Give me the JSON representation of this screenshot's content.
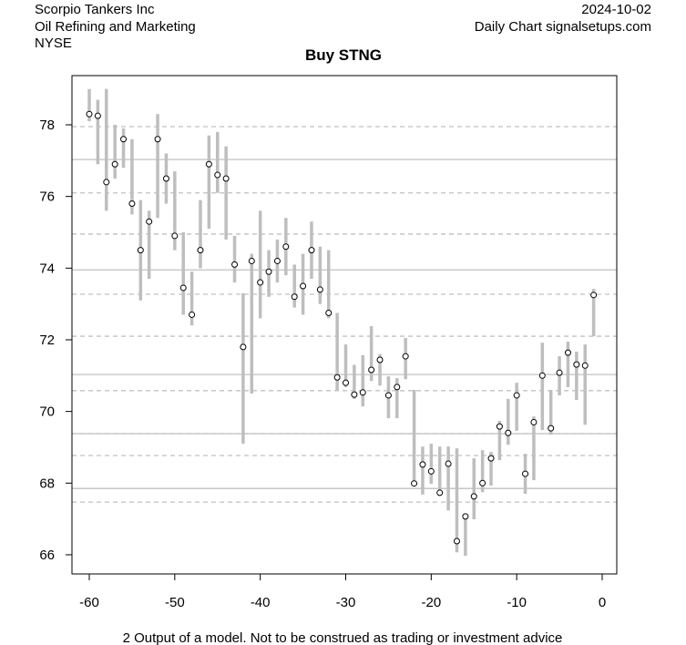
{
  "header": {
    "company": "Scorpio Tankers Inc",
    "sector": "Oil Refining and Marketing",
    "exchange": "NYSE",
    "date": "2024-10-02",
    "source": "Daily Chart signalsetups.com"
  },
  "footer": {
    "disclaimer": "2 Output of a model. Not to be construed as trading or investment advice"
  },
  "chart_data": {
    "type": "range-dot",
    "title": "Buy STNG",
    "xlabel": "",
    "ylabel": "",
    "xlim": [
      -62,
      1.5
    ],
    "ylim": [
      65.4,
      79.5
    ],
    "xticks": [
      -60,
      -50,
      -40,
      -30,
      -20,
      -10,
      0
    ],
    "yticks": [
      66,
      68,
      70,
      72,
      74,
      76,
      78
    ],
    "grid": false,
    "solid_lines": [
      77.03,
      73.95,
      71.03,
      69.38,
      67.85
    ],
    "dashed_lines": [
      77.95,
      76.1,
      74.95,
      73.27,
      72.1,
      70.58,
      69.38,
      68.77,
      67.47
    ],
    "x": [
      -60,
      -59,
      -58,
      -57,
      -56,
      -55,
      -54,
      -53,
      -52,
      -51,
      -50,
      -49,
      -48,
      -47,
      -46,
      -45,
      -44,
      -43,
      -42,
      -41,
      -40,
      -39,
      -38,
      -37,
      -36,
      -35,
      -34,
      -33,
      -32,
      -31,
      -30,
      -29,
      -28,
      -27,
      -26,
      -25,
      -24,
      -23,
      -22,
      -21,
      -20,
      -19,
      -18,
      -17,
      -16,
      -15,
      -14,
      -13,
      -12,
      -11,
      -10,
      -9,
      -8,
      -7,
      -6,
      -5,
      -4,
      -3,
      -2,
      -1
    ],
    "close": [
      78.3,
      78.25,
      76.4,
      76.9,
      77.6,
      75.8,
      74.5,
      75.3,
      77.6,
      76.5,
      74.9,
      73.45,
      72.7,
      74.5,
      76.9,
      76.6,
      76.5,
      74.1,
      71.8,
      74.2,
      73.6,
      73.9,
      74.2,
      74.6,
      73.2,
      73.5,
      74.5,
      73.4,
      72.75,
      70.95,
      70.8,
      70.47,
      70.53,
      71.16,
      71.44,
      70.45,
      70.68,
      71.54,
      67.99,
      68.52,
      68.33,
      67.73,
      68.54,
      66.38,
      67.07,
      67.63,
      68.0,
      68.69,
      69.58,
      69.4,
      70.45,
      68.26,
      69.7,
      71.0,
      69.53,
      71.08,
      71.64,
      71.31,
      71.28,
      73.25
    ],
    "low": [
      78.1,
      76.9,
      75.6,
      76.5,
      76.8,
      75.5,
      73.1,
      73.7,
      75.4,
      75.8,
      74.5,
      72.7,
      72.4,
      74.0,
      75.1,
      76.1,
      74.8,
      73.6,
      69.1,
      70.5,
      72.6,
      73.2,
      73.6,
      73.8,
      72.9,
      72.7,
      73.7,
      73.0,
      72.6,
      70.6,
      70.68,
      70.35,
      70.14,
      70.85,
      70.72,
      69.81,
      69.81,
      70.9,
      68.0,
      67.68,
      67.98,
      67.65,
      67.24,
      66.07,
      65.97,
      66.99,
      67.75,
      67.93,
      68.64,
      69.07,
      69.46,
      67.7,
      68.08,
      69.48,
      69.35,
      70.45,
      70.68,
      70.32,
      69.63,
      72.1
    ],
    "high": [
      79.0,
      78.7,
      79.0,
      78.0,
      77.9,
      77.6,
      75.9,
      75.6,
      78.3,
      77.2,
      76.7,
      75.0,
      73.9,
      75.9,
      77.7,
      77.8,
      77.4,
      74.9,
      73.3,
      74.4,
      75.6,
      74.5,
      74.8,
      75.4,
      74.1,
      74.4,
      75.3,
      74.6,
      74.5,
      72.75,
      71.87,
      71.3,
      71.57,
      72.38,
      71.6,
      70.98,
      70.93,
      72.05,
      70.6,
      69.02,
      69.1,
      69.02,
      69.02,
      68.97,
      67.07,
      68.69,
      68.92,
      68.87,
      69.74,
      70.35,
      70.8,
      68.82,
      69.86,
      71.92,
      70.6,
      71.54,
      71.95,
      71.67,
      71.87,
      73.42
    ]
  }
}
